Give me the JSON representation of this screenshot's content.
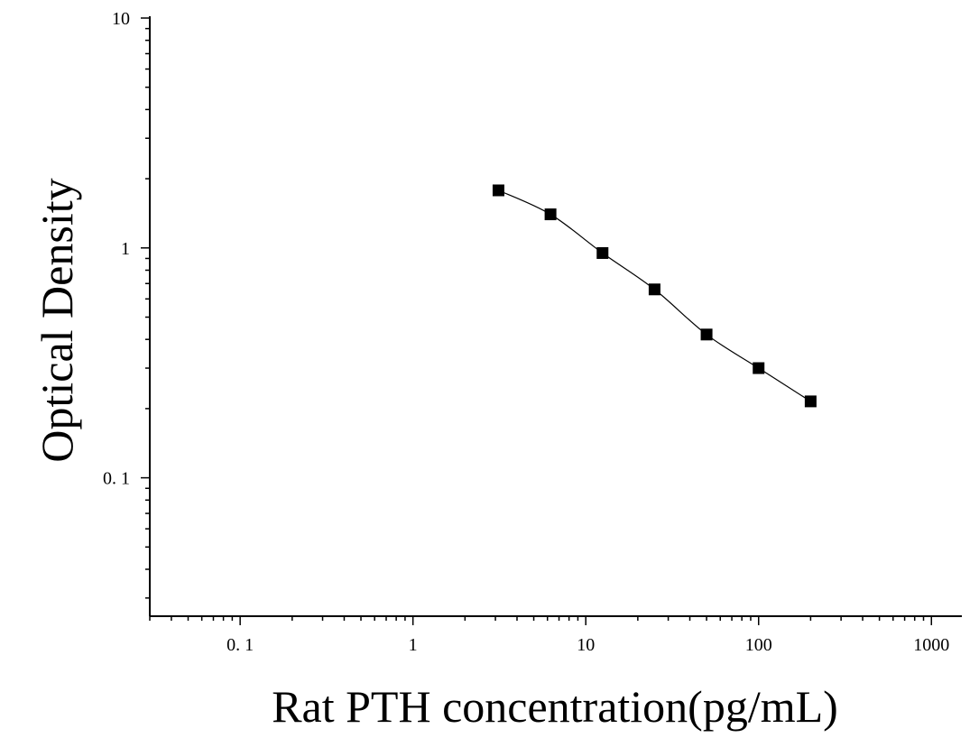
{
  "chart_data": {
    "type": "scatter",
    "xlabel": "Rat PTH concentration(pg/mL)",
    "ylabel": "Optical Density",
    "x_scale": "log",
    "y_scale": "log",
    "xlim": [
      0.03,
      1500
    ],
    "ylim": [
      0.025,
      10
    ],
    "x_ticks": [
      {
        "value": 0.1,
        "label": "0. 1"
      },
      {
        "value": 1,
        "label": "1"
      },
      {
        "value": 10,
        "label": "10"
      },
      {
        "value": 100,
        "label": "100"
      },
      {
        "value": 1000,
        "label": "1000"
      }
    ],
    "y_ticks": [
      {
        "value": 0.1,
        "label": "0. 1"
      },
      {
        "value": 1,
        "label": "1"
      },
      {
        "value": 10,
        "label": "10"
      }
    ],
    "grid": false,
    "series": [
      {
        "marker": "square",
        "color": "#000000",
        "fit_line": true,
        "points": [
          {
            "x": 3.125,
            "y": 1.78
          },
          {
            "x": 6.25,
            "y": 1.4
          },
          {
            "x": 12.5,
            "y": 0.95
          },
          {
            "x": 25,
            "y": 0.66
          },
          {
            "x": 50,
            "y": 0.42
          },
          {
            "x": 100,
            "y": 0.3
          },
          {
            "x": 200,
            "y": 0.215
          }
        ]
      }
    ]
  }
}
